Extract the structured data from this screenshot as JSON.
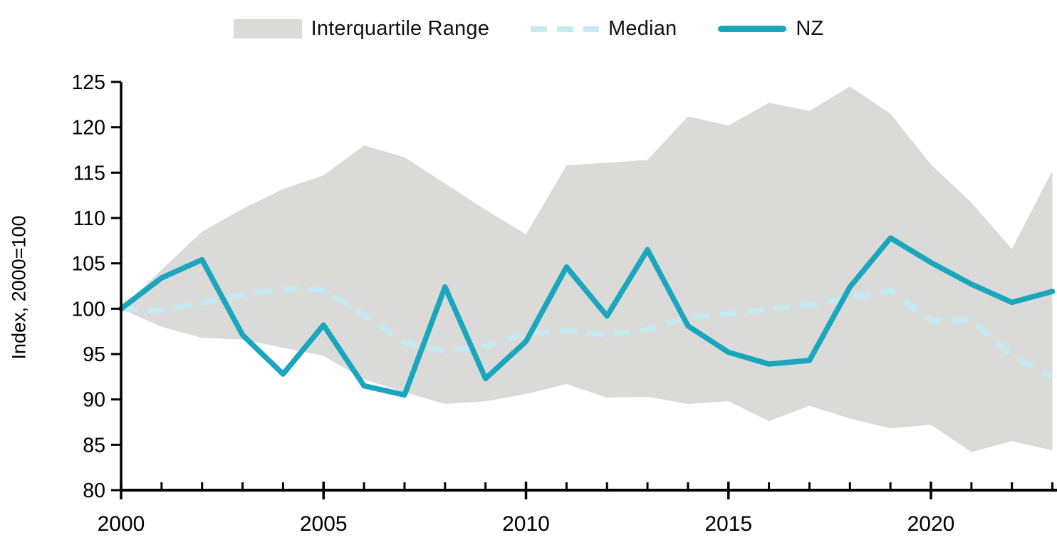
{
  "legend": {
    "iqr_label": "Interquartile Range",
    "median_label": "Median",
    "nz_label": "NZ"
  },
  "colors": {
    "band": "#DADAD8",
    "median": "#C6EAF3",
    "nz": "#1AA6BD",
    "axis": "#000000"
  },
  "chart_data": {
    "type": "line",
    "title": "",
    "xlabel": "",
    "ylabel": "Index, 2000=100",
    "ylim": [
      80,
      125
    ],
    "yticks": [
      80,
      85,
      90,
      95,
      100,
      105,
      110,
      115,
      120,
      125
    ],
    "xlim": [
      2000,
      2023
    ],
    "xticks_major": [
      2000,
      2005,
      2010,
      2015,
      2020
    ],
    "xticks_minor_every": 1,
    "grid": false,
    "legend_position": "top",
    "x": [
      2000,
      2001,
      2002,
      2003,
      2004,
      2005,
      2006,
      2007,
      2008,
      2009,
      2010,
      2011,
      2012,
      2013,
      2014,
      2015,
      2016,
      2017,
      2018,
      2019,
      2020,
      2021,
      2022,
      2023
    ],
    "series": [
      {
        "name": "Interquartile Range",
        "kind": "band",
        "upper": [
          100,
          104.3,
          108.5,
          111.0,
          113.2,
          114.7,
          118.0,
          116.7,
          113.8,
          110.9,
          108.2,
          115.8,
          116.1,
          116.4,
          121.2,
          120.2,
          122.7,
          121.8,
          124.5,
          121.5,
          115.9,
          111.7,
          106.6,
          115.2
        ],
        "lower": [
          100,
          98.0,
          96.8,
          96.6,
          95.7,
          94.8,
          92.2,
          90.8,
          89.5,
          89.8,
          90.6,
          91.7,
          90.2,
          90.3,
          89.5,
          89.8,
          87.6,
          89.3,
          87.9,
          86.8,
          87.2,
          84.2,
          85.4,
          84.4
        ]
      },
      {
        "name": "Median",
        "kind": "dashed-line",
        "values": [
          100,
          99.8,
          100.7,
          101.5,
          102.2,
          102.1,
          99.3,
          96.3,
          95.3,
          95.9,
          97.3,
          97.6,
          97.1,
          97.7,
          99.1,
          99.4,
          100.0,
          100.4,
          101.2,
          102.0,
          98.7,
          98.8,
          94.8,
          92.5
        ]
      },
      {
        "name": "NZ",
        "kind": "line",
        "values": [
          100,
          103.4,
          105.4,
          97.1,
          92.8,
          98.2,
          91.5,
          90.5,
          102.4,
          92.3,
          96.4,
          104.6,
          99.2,
          106.5,
          98.1,
          95.2,
          93.9,
          94.3,
          102.4,
          107.8,
          105.1,
          102.7,
          100.7,
          101.9
        ]
      }
    ]
  }
}
